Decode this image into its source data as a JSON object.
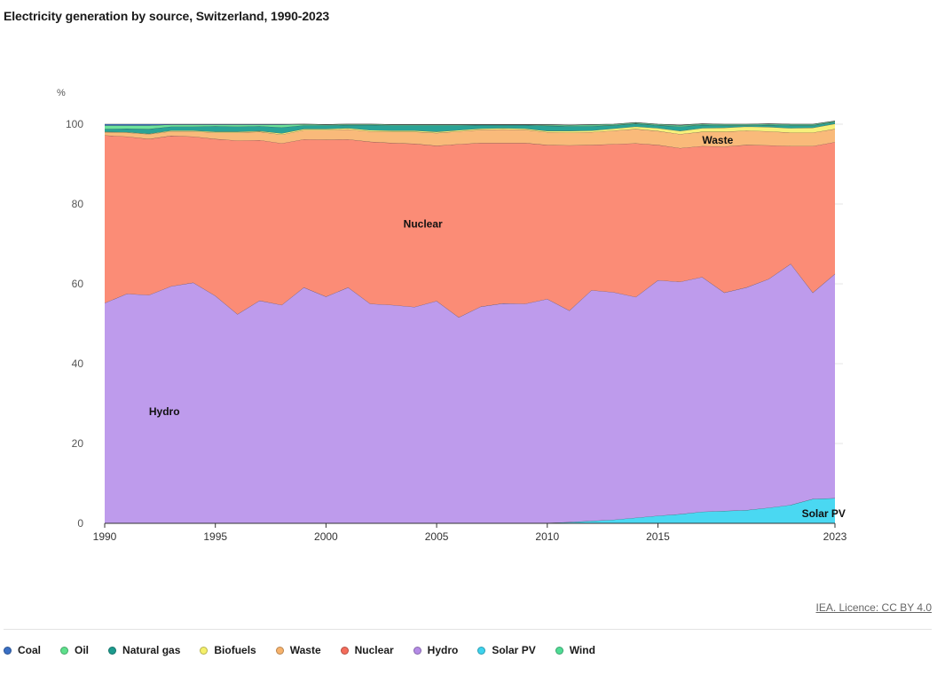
{
  "title": "Electricity generation by source, Switzerland, 1990-2023",
  "credit": "IEA. Licence: CC BY 4.0",
  "legend": [
    {
      "name": "Coal",
      "color": "#3a6fc4"
    },
    {
      "name": "Oil",
      "color": "#5ee08c"
    },
    {
      "name": "Natural gas",
      "color": "#1c9b8e"
    },
    {
      "name": "Biofuels",
      "color": "#f5f06a"
    },
    {
      "name": "Waste",
      "color": "#f7b26b"
    },
    {
      "name": "Nuclear",
      "color": "#f46c5b"
    },
    {
      "name": "Hydro",
      "color": "#b48be6"
    },
    {
      "name": "Solar PV",
      "color": "#3dd3ee"
    },
    {
      "name": "Wind",
      "color": "#4fdc95"
    }
  ],
  "chart_data": {
    "type": "area",
    "stacked": true,
    "ylabel": "%",
    "ylim": [
      0,
      100
    ],
    "yticks": [
      0,
      20,
      40,
      60,
      80,
      100
    ],
    "xticks": [
      "1990",
      "1995",
      "2000",
      "2005",
      "2010",
      "2015",
      "2023"
    ],
    "grid": true,
    "x": [
      1990,
      1991,
      1992,
      1993,
      1994,
      1995,
      1996,
      1997,
      1998,
      1999,
      2000,
      2001,
      2002,
      2003,
      2004,
      2005,
      2006,
      2007,
      2008,
      2009,
      2010,
      2011,
      2012,
      2013,
      2014,
      2015,
      2016,
      2017,
      2018,
      2019,
      2020,
      2021,
      2022,
      2023
    ],
    "series": [
      {
        "name": "Solar PV",
        "color": "#3dd3ee",
        "fill": "#4ad8f2",
        "values": [
          0,
          0,
          0,
          0,
          0,
          0,
          0,
          0,
          0,
          0,
          0,
          0,
          0,
          0,
          0,
          0,
          0,
          0,
          0,
          0,
          0.1,
          0.3,
          0.6,
          0.9,
          1.4,
          1.9,
          2.3,
          2.9,
          3.1,
          3.3,
          3.9,
          4.6,
          6.1,
          6.3
        ]
      },
      {
        "name": "Hydro",
        "color": "#b48be6",
        "fill": "#be9bec",
        "values": [
          55.2,
          57.5,
          57.2,
          59.4,
          60.3,
          57.0,
          52.4,
          55.8,
          54.7,
          59.1,
          56.8,
          59.1,
          55.0,
          54.7,
          54.2,
          55.7,
          51.6,
          54.3,
          55.1,
          55.0,
          56.1,
          53.0,
          57.8,
          57.0,
          55.3,
          59.0,
          58.2,
          58.8,
          54.7,
          55.8,
          57.3,
          60.4,
          51.7,
          56.2
        ]
      },
      {
        "name": "Nuclear",
        "color": "#f46c5b",
        "fill": "#fb8c76",
        "values": [
          42.0,
          39.4,
          39.1,
          37.7,
          36.6,
          39.3,
          43.5,
          40.2,
          40.5,
          37.1,
          39.3,
          37.1,
          40.6,
          40.6,
          40.9,
          38.9,
          43.4,
          41.0,
          40.2,
          40.3,
          38.6,
          41.4,
          36.4,
          37.1,
          38.5,
          33.9,
          33.5,
          32.8,
          36.6,
          35.7,
          33.5,
          29.5,
          36.7,
          33.0
        ]
      },
      {
        "name": "Waste",
        "color": "#f7b26b",
        "fill": "#f9ba7a",
        "values": [
          0.8,
          1.0,
          1.2,
          1.1,
          1.3,
          1.6,
          2.0,
          2.1,
          2.2,
          2.3,
          2.4,
          2.5,
          2.6,
          2.8,
          3.0,
          3.2,
          3.2,
          3.3,
          3.4,
          3.3,
          3.2,
          3.2,
          3.2,
          3.4,
          3.6,
          3.5,
          3.5,
          3.6,
          3.7,
          3.6,
          3.5,
          3.4,
          3.4,
          3.3
        ]
      },
      {
        "name": "Biofuels",
        "color": "#f5f06a",
        "fill": "#f7f07a",
        "values": [
          0.1,
          0.1,
          0.1,
          0.2,
          0.2,
          0.2,
          0.2,
          0.2,
          0.3,
          0.3,
          0.3,
          0.3,
          0.3,
          0.3,
          0.3,
          0.3,
          0.3,
          0.3,
          0.3,
          0.3,
          0.3,
          0.4,
          0.4,
          0.5,
          0.6,
          0.7,
          0.8,
          0.9,
          1.0,
          1.0,
          1.1,
          1.1,
          1.2,
          1.3
        ]
      },
      {
        "name": "Natural gas",
        "color": "#1c9b8e",
        "fill": "#2aa396",
        "values": [
          0.7,
          0.9,
          1.2,
          1.0,
          1.0,
          1.4,
          1.3,
          1.2,
          1.5,
          0.9,
          0.9,
          0.8,
          1.3,
          1.3,
          1.3,
          1.6,
          1.2,
          0.9,
          0.8,
          0.9,
          1.3,
          1.2,
          1.1,
          0.8,
          0.7,
          0.7,
          1.1,
          0.8,
          0.6,
          0.3,
          0.5,
          0.7,
          0.6,
          0.4
        ]
      },
      {
        "name": "Oil",
        "color": "#5ee08c",
        "fill": "#6ee39a",
        "values": [
          0.9,
          0.8,
          0.9,
          0.5,
          0.5,
          0.4,
          0.5,
          0.4,
          0.7,
          0.3,
          0.2,
          0.2,
          0.2,
          0.2,
          0.2,
          0.2,
          0.2,
          0.1,
          0.1,
          0.1,
          0.2,
          0.2,
          0.2,
          0.1,
          0.1,
          0.1,
          0.2,
          0.1,
          0.1,
          0.1,
          0.1,
          0.1,
          0.1,
          0.1
        ]
      },
      {
        "name": "Wind",
        "color": "#4fdc95",
        "fill": "#5fe0a0",
        "values": [
          0,
          0,
          0,
          0,
          0,
          0,
          0,
          0,
          0,
          0,
          0,
          0,
          0,
          0,
          0,
          0,
          0,
          0,
          0,
          0,
          0.1,
          0.1,
          0.2,
          0.2,
          0.2,
          0.2,
          0.2,
          0.2,
          0.2,
          0.2,
          0.2,
          0.2,
          0.2,
          0.2
        ]
      },
      {
        "name": "Coal",
        "color": "#3a6fc4",
        "fill": "#3a6fc4",
        "values": [
          0.3,
          0.3,
          0.3,
          0.1,
          0.1,
          0.1,
          0.1,
          0.1,
          0.1,
          0,
          0,
          0,
          0,
          0,
          0,
          0,
          0,
          0,
          0,
          0,
          0,
          0,
          0,
          0,
          0,
          0,
          0,
          0,
          0,
          0,
          0,
          0,
          0,
          0
        ]
      }
    ],
    "annotations": [
      {
        "text": "Nuclear",
        "x": 2003.5,
        "y": 75
      },
      {
        "text": "Hydro",
        "x": 1992,
        "y": 28
      },
      {
        "text": "Waste",
        "x": 2017,
        "y": 96
      },
      {
        "text": "Solar PV",
        "x": 2021.5,
        "y": 2.5
      }
    ]
  }
}
